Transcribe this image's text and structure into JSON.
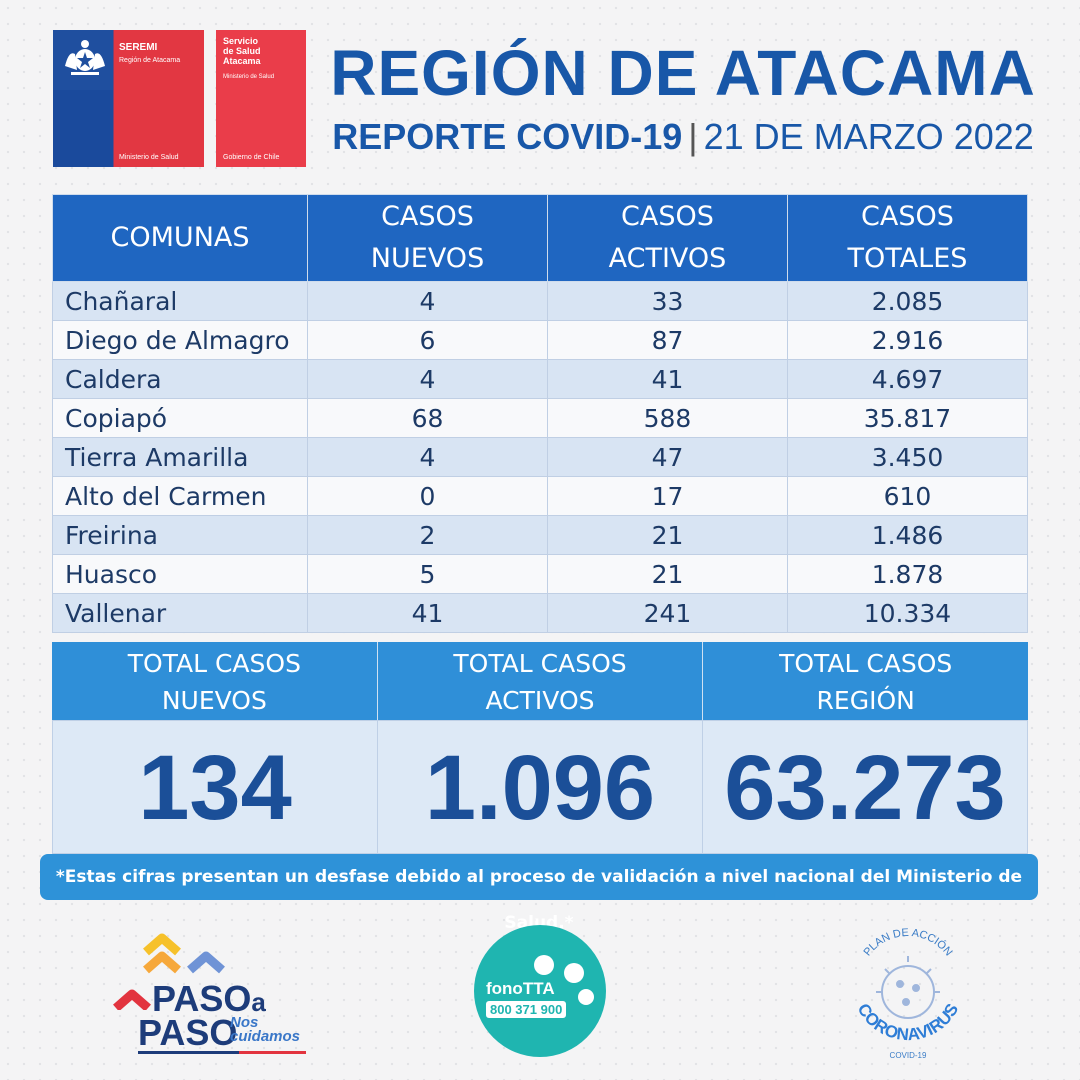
{
  "logos": {
    "seremi": {
      "title": "SEREMI",
      "region": "Región de Atacama",
      "ministry": "Ministerio de Salud"
    },
    "servicio": {
      "title": "Servicio\nde Salud\nAtacama",
      "ministry": "Ministerio de Salud",
      "government": "Gobierno de Chile"
    },
    "paso": {
      "word1": "PASO",
      "word1_suffix": "a",
      "word2": "PASO",
      "tagline1": "Nos",
      "tagline2": "cuidamos"
    },
    "fono": {
      "name": "fonoTTA",
      "number": "800 371 900"
    },
    "plan": {
      "arc_top": "PLAN DE ACCIÓN",
      "word": "CORONAVIRUS",
      "sub": "COVID-19"
    }
  },
  "header": {
    "title": "REGIÓN DE ATACAMA",
    "report": "REPORTE COVID-19",
    "separator": "|",
    "date": "21 DE MARZO 2022"
  },
  "table": {
    "headers": [
      [
        "COMUNAS"
      ],
      [
        "CASOS",
        "NUEVOS"
      ],
      [
        "CASOS",
        "ACTIVOS"
      ],
      [
        "CASOS",
        "TOTALES"
      ]
    ],
    "rows": [
      {
        "comuna": "Chañaral",
        "nuevos": "4",
        "activos": "33",
        "totales": "2.085"
      },
      {
        "comuna": "Diego de Almagro",
        "nuevos": "6",
        "activos": "87",
        "totales": "2.916"
      },
      {
        "comuna": "Caldera",
        "nuevos": "4",
        "activos": "41",
        "totales": "4.697"
      },
      {
        "comuna": "Copiapó",
        "nuevos": "68",
        "activos": "588",
        "totales": "35.817"
      },
      {
        "comuna": "Tierra Amarilla",
        "nuevos": "4",
        "activos": "47",
        "totales": "3.450"
      },
      {
        "comuna": "Alto del Carmen",
        "nuevos": "0",
        "activos": "17",
        "totales": "610"
      },
      {
        "comuna": "Freirina",
        "nuevos": "2",
        "activos": "21",
        "totales": "1.486"
      },
      {
        "comuna": "Huasco",
        "nuevos": "5",
        "activos": "21",
        "totales": "1.878"
      },
      {
        "comuna": "Vallenar",
        "nuevos": "41",
        "activos": "241",
        "totales": "10.334"
      }
    ]
  },
  "totals": {
    "nuevos": {
      "label1": "TOTAL CASOS",
      "label2": "NUEVOS",
      "value": "134"
    },
    "activos": {
      "label1": "TOTAL CASOS",
      "label2": "ACTIVOS",
      "value": "1.096"
    },
    "region": {
      "label1": "TOTAL CASOS",
      "label2": "REGIÓN",
      "value": "63.273"
    }
  },
  "note": "*Estas cifras presentan un desfase debido al proceso de validación a nivel nacional del Ministerio de Salud.*",
  "colors": {
    "primary_blue": "#1857a8",
    "header_blue": "#1f66c1",
    "light_blue": "#2f8fd8",
    "red": "#e23742",
    "teal": "#1fb5b0"
  }
}
